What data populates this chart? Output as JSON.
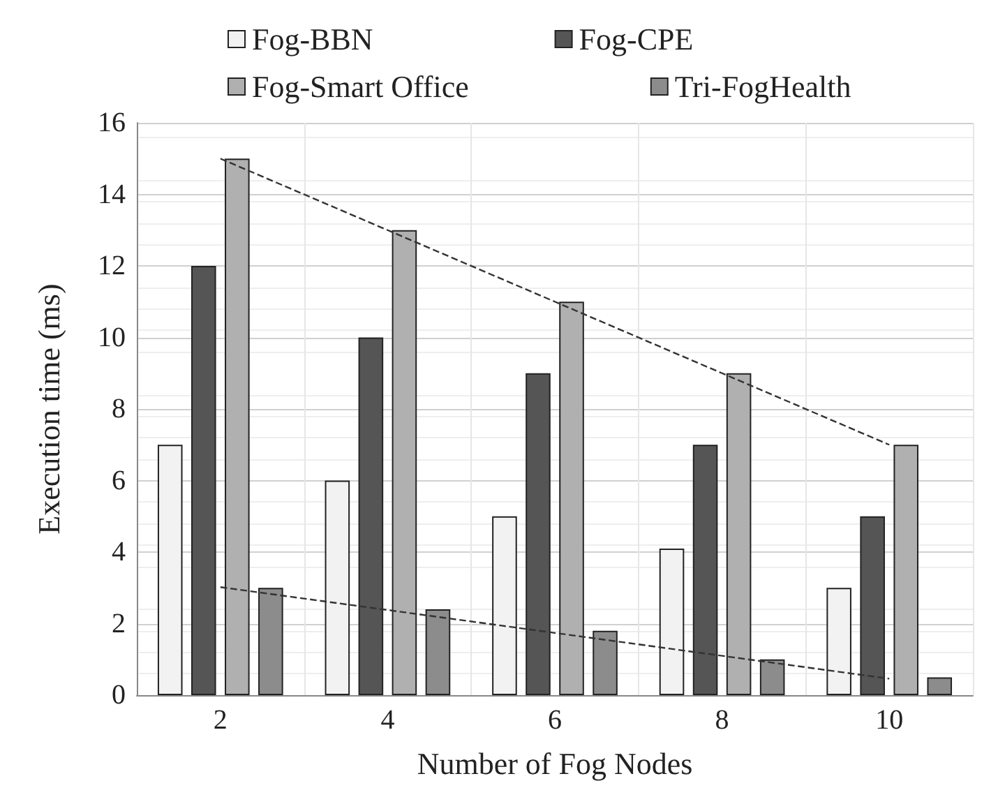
{
  "chart_data": {
    "type": "bar",
    "xlabel": "Number of Fog Nodes",
    "ylabel": "Execution time (ms)",
    "categories": [
      "2",
      "4",
      "6",
      "8",
      "10"
    ],
    "series": [
      {
        "name": "Fog-BBN",
        "color": "#f2f2f2",
        "values": [
          7,
          6,
          5,
          4.1,
          3
        ]
      },
      {
        "name": "Fog-CPE",
        "color": "#555555",
        "values": [
          12,
          10,
          9,
          7,
          5
        ]
      },
      {
        "name": "Fog-Smart Office",
        "color": "#b0b0b0",
        "values": [
          15,
          13,
          11,
          9,
          7
        ]
      },
      {
        "name": "Tri-FogHealth",
        "color": "#8c8c8c",
        "values": [
          3,
          2.4,
          1.8,
          1,
          0.5
        ]
      },
      {
        "type": "line",
        "color": "#333333",
        "line_style": "dashed",
        "x": [
          "2",
          "4",
          "6",
          "8",
          "10"
        ],
        "values": [
          15,
          13,
          11,
          9,
          7
        ]
      },
      {
        "type": "line",
        "color": "#333333",
        "line_style": "dashed",
        "x": [
          "2",
          "4",
          "6",
          "8",
          "10"
        ],
        "values": [
          3.02,
          2.38,
          1.74,
          1.1,
          0.46
        ]
      }
    ],
    "ylim": [
      0,
      16
    ],
    "yticks": [
      0,
      2,
      4,
      6,
      8,
      10,
      12,
      14,
      16
    ],
    "grid": true,
    "legend": "top",
    "marker": "none"
  }
}
